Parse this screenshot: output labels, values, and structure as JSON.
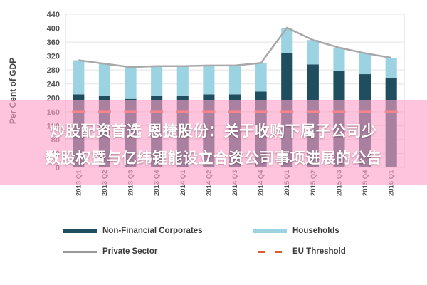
{
  "chart_data": {
    "type": "bar",
    "stacked": true,
    "title": "",
    "ylabel": "Per Cent of GDP",
    "xlabel": "",
    "ylim": [
      0,
      440
    ],
    "yticks": [
      0,
      40,
      80,
      120,
      160,
      200,
      240,
      280,
      320,
      360,
      400,
      440
    ],
    "grid": true,
    "categories": [
      "2013 Q1",
      "2013 Q2",
      "2013 Q3",
      "2013 Q4",
      "2014 Q1",
      "2014 Q2",
      "2014 Q3",
      "2014 Q4",
      "2015 Q1",
      "2015 Q2",
      "2015 Q3",
      "2015 Q4",
      "2016 Q1"
    ],
    "series": [
      {
        "name": "Non-Financial Corporates",
        "color": "#1f4e5e",
        "values": [
          210,
          205,
          197,
          205,
          205,
          210,
          210,
          218,
          328,
          296,
          278,
          268,
          258
        ]
      },
      {
        "name": "Households",
        "color": "#9cd3e2",
        "values": [
          98,
          93,
          91,
          86,
          86,
          83,
          83,
          82,
          73,
          70,
          66,
          60,
          57
        ]
      }
    ],
    "lines": [
      {
        "name": "Private Sector",
        "color": "#a8a8a8",
        "values": [
          308,
          298,
          288,
          291,
          291,
          293,
          293,
          300,
          401,
          366,
          344,
          328,
          315
        ]
      },
      {
        "name": "EU Threshold",
        "color": "#e15a2a",
        "dashed": true,
        "values": [
          160,
          160,
          160,
          160,
          160,
          160,
          160,
          160,
          160,
          160,
          160,
          160,
          160
        ]
      }
    ],
    "legend_position": "bottom"
  },
  "overlay": {
    "line1": "炒股配资首选 恩捷股份：关于收购下属子公司少",
    "line2": "数股权暨与亿纬锂能设立合资公司事项进展的公告"
  },
  "legend": {
    "non_financial": "Non-Financial Corporates",
    "households": "Households",
    "private_sector": "Private Sector",
    "eu_threshold": "EU Threshold"
  }
}
